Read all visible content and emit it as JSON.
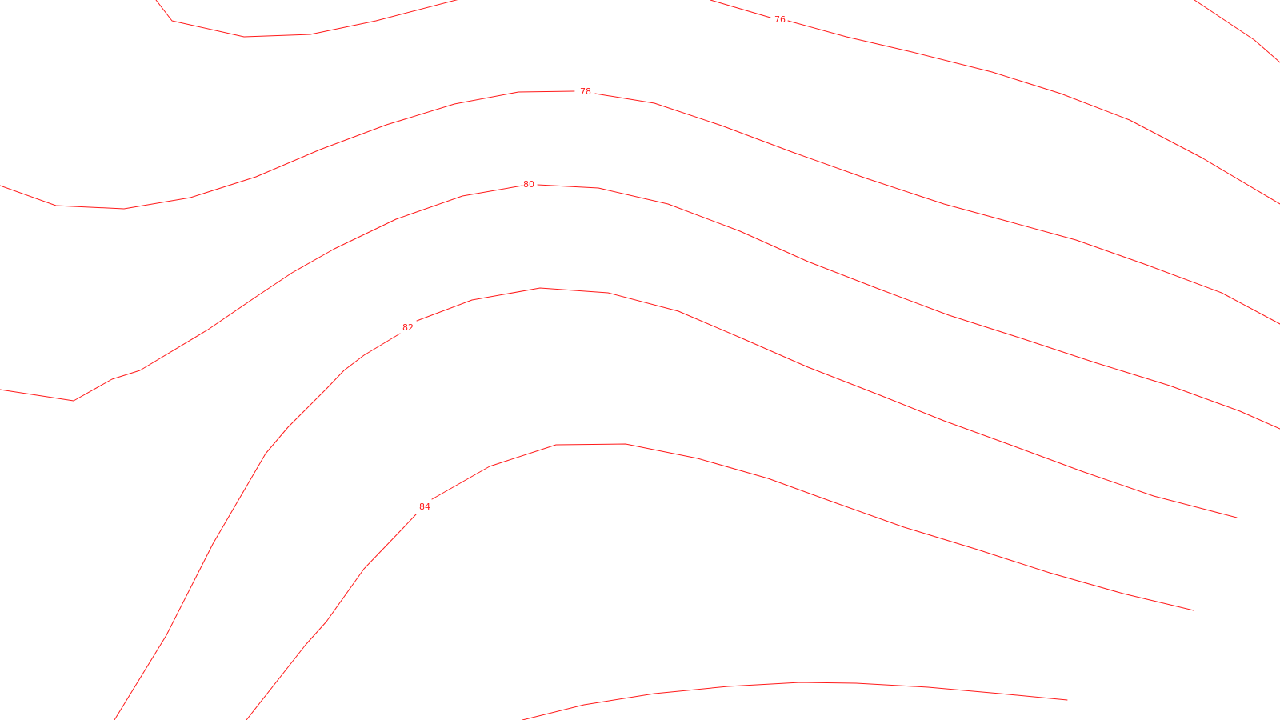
{
  "map": {
    "type": "contour-lines",
    "line_color": "#ff1a1a",
    "background": "#ffffff",
    "contour_interval": 2,
    "labels": {
      "c76": "76",
      "c78": "78",
      "c80": "80",
      "c82": "82",
      "c84": "84"
    }
  }
}
